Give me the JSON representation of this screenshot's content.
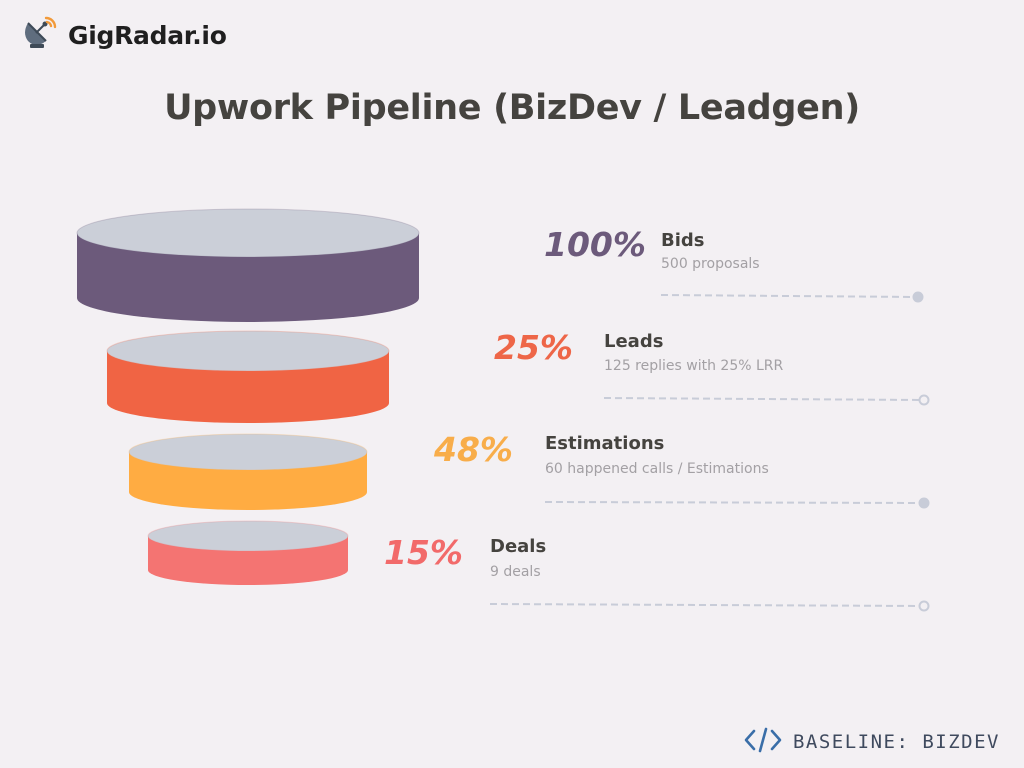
{
  "header": {
    "brand_name": "GigRadar.io",
    "brand_icon": "satellite-dish-icon",
    "title": "Upwork Pipeline (BizDev / Leadgen)"
  },
  "stages": [
    {
      "percent": "100%",
      "label": "Bids",
      "detail": "500 proposals",
      "color": "#6c5a7b",
      "percent_color": "#6c5a7b",
      "end_marker": "filled"
    },
    {
      "percent": "25%",
      "label": "Leads",
      "detail": "125 replies with 25% LRR",
      "color": "#f06444",
      "percent_color": "#ee6648",
      "end_marker": "hollow"
    },
    {
      "percent": "48%",
      "label": "Estimations",
      "detail": "60 happened calls / Estimations",
      "color": "#ffac42",
      "percent_color": "#f8ad4a",
      "end_marker": "filled"
    },
    {
      "percent": "15%",
      "label": "Deals",
      "detail": "9 deals",
      "color": "#f47472",
      "percent_color": "#f26a6a",
      "end_marker": "hollow"
    }
  ],
  "colors": {
    "background": "#f3f0f3",
    "disc_top": "#cbcfd8",
    "connector": "#c8ccd8"
  },
  "footer": {
    "icon": "code-brackets-icon",
    "label": "BASELINE: BIZDEV"
  }
}
